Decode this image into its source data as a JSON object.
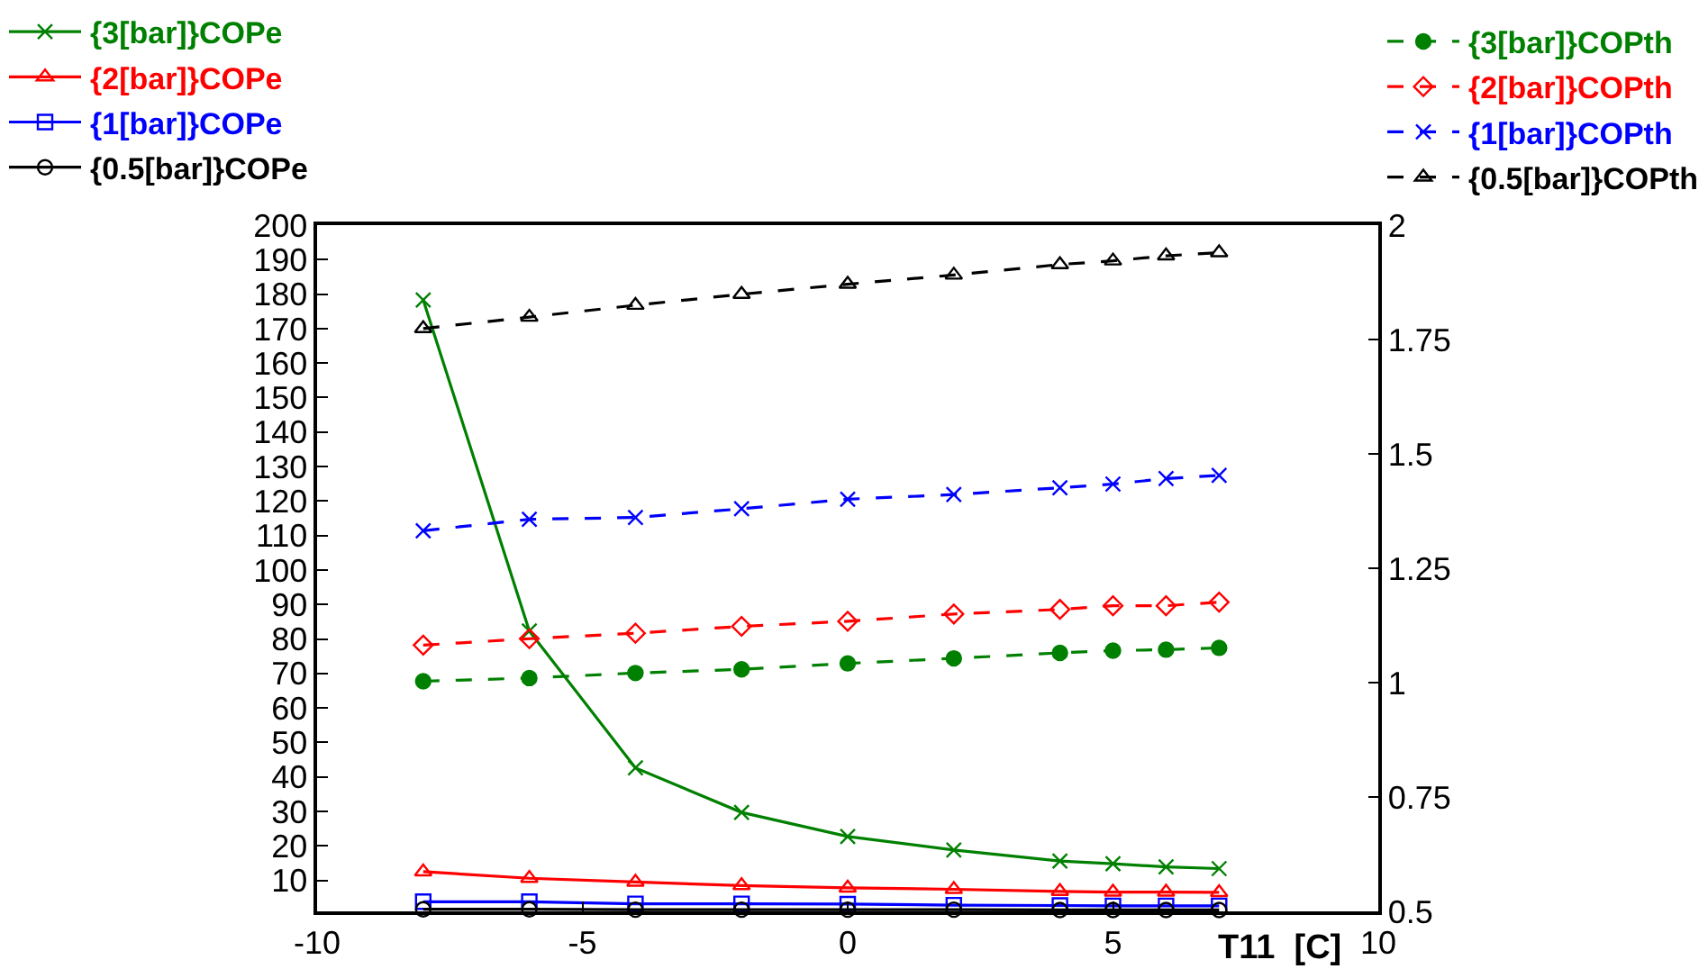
{
  "chart_data": {
    "type": "line",
    "xlabel": "T11  [C]",
    "x": [
      -8,
      -6,
      -4,
      -2,
      0,
      2,
      4,
      5,
      6,
      7
    ],
    "xlim": [
      -10,
      10
    ],
    "xticks": [
      -10,
      -5,
      0,
      5,
      10
    ],
    "ylim": [
      1,
      200
    ],
    "yticks": [
      10,
      20,
      30,
      40,
      50,
      60,
      70,
      80,
      90,
      100,
      110,
      120,
      130,
      140,
      150,
      160,
      170,
      180,
      190,
      200
    ],
    "y2lim": [
      0.5,
      2
    ],
    "y2ticks": [
      0.5,
      0.75,
      1,
      1.25,
      1.5,
      1.75,
      2
    ],
    "grid": false,
    "legend": "top",
    "series": [
      {
        "name": "{3[bar]}COPe",
        "color": "#008000",
        "axis": "y",
        "marker": "cross",
        "line_style": "solid",
        "values": [
          178.3,
          82.3,
          42.6,
          29.7,
          22.7,
          18.8,
          15.6,
          14.8,
          13.9,
          13.4
        ]
      },
      {
        "name": "{2[bar]}COPe",
        "color": "#ff0000",
        "axis": "y",
        "marker": "triangle",
        "line_style": "solid",
        "values": [
          12.5,
          10.6,
          9.5,
          8.5,
          7.8,
          7.4,
          6.8,
          6.6,
          6.6,
          6.5
        ]
      },
      {
        "name": "{1[bar]}COPe",
        "color": "#0000ff",
        "axis": "y",
        "marker": "square",
        "line_style": "solid",
        "values": [
          3.8,
          3.8,
          3.2,
          3.2,
          3.1,
          2.8,
          2.7,
          2.6,
          2.6,
          2.6
        ]
      },
      {
        "name": "{0.5[bar]}COPe",
        "color": "#000000",
        "axis": "y",
        "marker": "circle",
        "line_style": "solid",
        "values": [
          1.6,
          1.6,
          1.5,
          1.5,
          1.5,
          1.5,
          1.4,
          1.4,
          1.4,
          1.4
        ]
      },
      {
        "name": "{3[bar]}COPth",
        "color": "#008000",
        "axis": "y2",
        "marker": "circle",
        "line_style": "dashed",
        "values": [
          1.003,
          1.01,
          1.021,
          1.029,
          1.042,
          1.053,
          1.065,
          1.07,
          1.072,
          1.076
        ]
      },
      {
        "name": "{2[bar]}COPth",
        "color": "#ff0000",
        "axis": "y2",
        "marker": "diamond",
        "line_style": "dashed",
        "values": [
          1.082,
          1.096,
          1.108,
          1.123,
          1.134,
          1.15,
          1.16,
          1.168,
          1.168,
          1.176
        ]
      },
      {
        "name": "{1[bar]}COPth",
        "color": "#0000ff",
        "axis": "y2",
        "marker": "cross",
        "line_style": "dashed",
        "values": [
          1.332,
          1.357,
          1.361,
          1.38,
          1.401,
          1.411,
          1.426,
          1.434,
          1.446,
          1.453
        ]
      },
      {
        "name": "{0.5[bar]}COPth",
        "color": "#000000",
        "axis": "y2",
        "marker": "triangle",
        "line_style": "dashed",
        "values": [
          1.774,
          1.799,
          1.825,
          1.849,
          1.871,
          1.891,
          1.914,
          1.922,
          1.933,
          1.94
        ]
      }
    ]
  }
}
